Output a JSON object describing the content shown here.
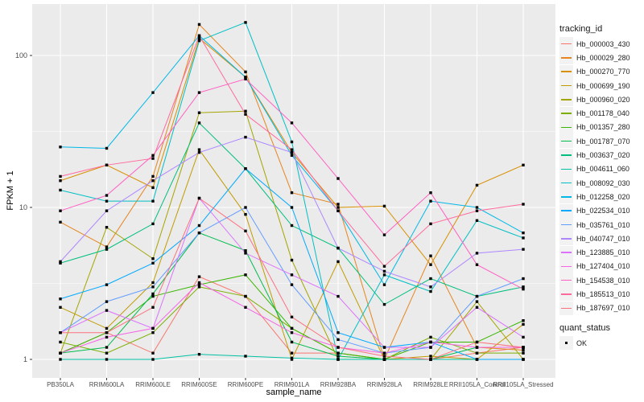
{
  "chart_data": {
    "type": "line",
    "xlabel": "sample_name",
    "ylabel": "FPKM + 1",
    "yscale": "log10",
    "ylim": [
      0.85,
      230
    ],
    "yticks": [
      "1",
      "10",
      "100"
    ],
    "ytick_values": [
      1,
      10,
      100
    ],
    "grid": true,
    "legend_position": "right",
    "categories": [
      "PB350LA",
      "RRIM600LA",
      "RRIM600LE",
      "RRIM600SE",
      "RRIM600PE",
      "RRIM901LA",
      "RRIM928BA",
      "RRIM928LA",
      "RRIM928LE",
      "RRII105LA_Control",
      "RRII105LA_Stressed"
    ],
    "legend_title": "tracking_id",
    "series": [
      {
        "name": "Hb_000003_430",
        "color": "#F8766D",
        "values": [
          1.1,
          1.5,
          1.1,
          3.5,
          2.6,
          1.1,
          1.1,
          1.0,
          1.0,
          1.1,
          1.2
        ]
      },
      {
        "name": "Hb_000029_280",
        "color": "#E7851E",
        "values": [
          8,
          5.5,
          16,
          160,
          78,
          12.5,
          10.5,
          1.0,
          4.8,
          1.2,
          1.15
        ]
      },
      {
        "name": "Hb_000270_770",
        "color": "#D89000",
        "values": [
          15,
          19,
          13.5,
          130,
          72,
          23,
          10,
          10.2,
          4.2,
          14,
          19
        ]
      },
      {
        "name": "Hb_000699_190",
        "color": "#C09B00",
        "values": [
          2.2,
          1.6,
          3.2,
          24,
          9,
          1.0,
          4.4,
          1.0,
          1.05,
          1.0,
          1.7
        ]
      },
      {
        "name": "Hb_000960_020",
        "color": "#A3A500",
        "values": [
          1.1,
          7.4,
          4.6,
          42,
          43,
          4.5,
          1.0,
          1.0,
          1.0,
          2.4,
          1.0
        ]
      },
      {
        "name": "Hb_001178_040",
        "color": "#7CAE00",
        "values": [
          1.3,
          1.1,
          1.5,
          3.0,
          2.6,
          1.6,
          1.1,
          1.0,
          1.4,
          1.1,
          1.1
        ]
      },
      {
        "name": "Hb_001357_280",
        "color": "#39B600",
        "values": [
          1.1,
          1.5,
          2.6,
          3.1,
          3.6,
          1.6,
          1.1,
          1.0,
          1.3,
          1.3,
          1.8
        ]
      },
      {
        "name": "Hb_001787_070",
        "color": "#00BB4E",
        "values": [
          1.1,
          1.2,
          2.7,
          6.8,
          5.2,
          1.3,
          1.05,
          1.0,
          1.0,
          1.2,
          1.2
        ]
      },
      {
        "name": "Hb_003637_020",
        "color": "#00BF7D",
        "values": [
          4.3,
          5.3,
          7.8,
          36,
          18,
          7.6,
          5.4,
          2.3,
          3.4,
          2.6,
          3.0
        ]
      },
      {
        "name": "Hb_004611_060",
        "color": "#00C1A3",
        "values": [
          1.0,
          1.0,
          1.0,
          1.08,
          1.05,
          1.02,
          1.0,
          1.0,
          1.0,
          1.0,
          1.0
        ]
      },
      {
        "name": "Hb_008092_030",
        "color": "#00BFC4",
        "values": [
          13,
          11,
          11,
          125,
          165,
          27,
          1.0,
          3.6,
          2.8,
          8.2,
          6.3
        ]
      },
      {
        "name": "Hb_012258_020",
        "color": "#00B8E7",
        "values": [
          25,
          24.5,
          57,
          135,
          72,
          22,
          9.5,
          3.1,
          11,
          10,
          6.8
        ]
      },
      {
        "name": "Hb_022534_010",
        "color": "#00A9FF",
        "values": [
          2.5,
          3.1,
          4.3,
          7.6,
          18,
          10,
          1.5,
          1.2,
          1.3,
          1.0,
          1.0
        ]
      },
      {
        "name": "Hb_035761_010",
        "color": "#619CFF",
        "values": [
          1.5,
          2.4,
          3.0,
          6.8,
          10,
          3.1,
          1.35,
          1.1,
          1.2,
          2.6,
          3.4
        ]
      },
      {
        "name": "Hb_040747_010",
        "color": "#AE87FF",
        "values": [
          4.4,
          9.5,
          15,
          23,
          29,
          23,
          5.4,
          3.8,
          3.0,
          5.0,
          5.3
        ]
      },
      {
        "name": "Hb_123885_010",
        "color": "#DB72FB",
        "values": [
          1.5,
          2.1,
          1.6,
          11.5,
          5.0,
          3.6,
          2.6,
          1.2,
          1.2,
          2.2,
          1.4
        ]
      },
      {
        "name": "Hb_127404_010",
        "color": "#F564E3",
        "values": [
          1.1,
          1.4,
          1.6,
          3.2,
          2.2,
          1.5,
          1.2,
          1.1,
          1.3,
          1.2,
          1.2
        ]
      },
      {
        "name": "Hb_154538_010",
        "color": "#FF61C3",
        "values": [
          9.5,
          12,
          22,
          57,
          70,
          36,
          15.5,
          6.6,
          12.5,
          4.2,
          2.9
        ]
      },
      {
        "name": "Hb_185513_010",
        "color": "#FF699C",
        "values": [
          16,
          19,
          21,
          135,
          41,
          24,
          9.5,
          4.1,
          7.8,
          9.5,
          10.5
        ]
      },
      {
        "name": "Hb_187697_010",
        "color": "#FC717F",
        "values": [
          1.5,
          1.5,
          2.2,
          11.5,
          7,
          1.9,
          1.2,
          1.05,
          1.0,
          1.3,
          1.2
        ]
      }
    ],
    "shape_legend_title": "quant_status",
    "shape_legend_items": [
      "OK"
    ]
  }
}
